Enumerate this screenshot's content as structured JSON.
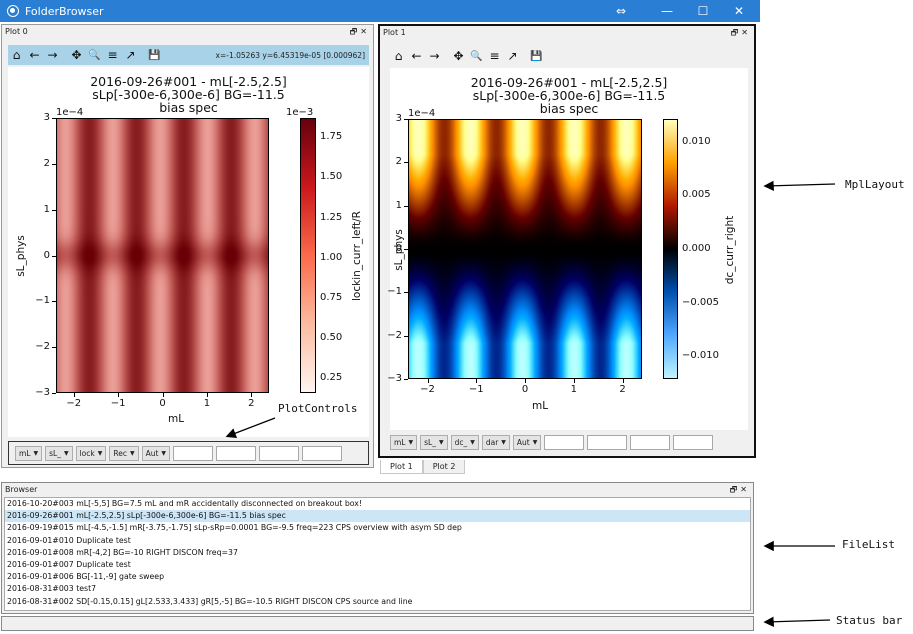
{
  "window": {
    "title": "FolderBrowser",
    "buttons": {
      "minimize": "—",
      "maximize": "☐",
      "close": "✕",
      "extra": "⇔"
    }
  },
  "plot0": {
    "dock_title": "Plot 0",
    "dock_controls": "🗗✕",
    "coords": "x=-1.05263     y=6.45319e-05  [0.000962]",
    "title_lines": [
      "2016-09-26#001 - mL[-2.5,2.5]",
      "sLp[-300e-6,300e-6] BG=-11.5",
      "bias spec"
    ],
    "y_offset": "1e−4",
    "cbar_offset": "1e−3",
    "xlabel": "mL",
    "ylabel": "sL_phys",
    "clabel": "lockin_curr_left/R",
    "yticks": [
      "3",
      "2",
      "1",
      "0",
      "−1",
      "−2",
      "−3"
    ],
    "xticks": [
      "−2",
      "−1",
      "0",
      "1",
      "2"
    ],
    "cticks": [
      "1.75",
      "1.50",
      "1.25",
      "1.00",
      "0.75",
      "0.50",
      "0.25"
    ],
    "controls": [
      "mL",
      "sL_",
      "lock",
      "Rec",
      "Aut"
    ]
  },
  "plot1": {
    "dock_title": "Plot 1",
    "dock_controls": "🗗✕",
    "title_lines": [
      "2016-09-26#001 - mL[-2.5,2.5]",
      "sLp[-300e-6,300e-6] BG=-11.5",
      "bias spec"
    ],
    "y_offset": "1e−4",
    "xlabel": "mL",
    "ylabel": "sL_phys",
    "clabel": "dc_curr_right",
    "yticks": [
      "3",
      "2",
      "1",
      "0",
      "−1",
      "−2",
      "−3"
    ],
    "xticks": [
      "−2",
      "−1",
      "0",
      "1",
      "2"
    ],
    "cticks": [
      "0.010",
      "0.005",
      "0.000",
      "−0.005",
      "−0.010"
    ],
    "controls": [
      "mL",
      "sL_",
      "dc_",
      "dar",
      "Aut"
    ]
  },
  "toolbar": {
    "icons": [
      "home-icon",
      "back-arrow-icon",
      "forward-arrow-icon",
      "pan-icon",
      "zoom-icon",
      "subplots-icon",
      "edit-axes-icon",
      "save-icon"
    ],
    "glyphs": [
      "⌂",
      "←",
      "→",
      "✥",
      "🔍",
      "≡",
      "↗",
      "💾"
    ]
  },
  "tabs": [
    "Plot 1",
    "Plot 2"
  ],
  "browser": {
    "dock_title": "Browser",
    "dock_controls": "🗗✕",
    "files": [
      "2016-10-20#003 mL[-5,5] BG=7.5 mL and mR accidentally disconnected on breakout box!",
      "2016-09-26#001 mL[-2.5,2.5] sLp[-300e-6,300e-6] BG=-11.5 bias spec",
      "2016-09-19#015 mL[-4.5,-1.5] mR[-3.75,-1.75] sLp-sRp=0.0001 BG=-9.5 freq=223 CPS overview with asym SD dep",
      "2016-09-01#010 Duplicate test",
      "2016-09-01#008 mR[-4,2] BG=-10 RIGHT DISCON freq=37",
      "2016-09-01#007 Duplicate test",
      "2016-09-01#006 BG[-11,-9] gate sweep",
      "2016-08-31#003 test7",
      "2016-08-31#002 SD[-0.15,0.15] gL[2.533,3.433] gR[5,-5] BG=-10.5 RIGHT DISCON CPS source and line"
    ],
    "selected_index": 1
  },
  "annotations": {
    "mpllayout": "MplLayout",
    "plotcontrols": "PlotControls",
    "filelist": "FileList",
    "statusbar": "Status bar"
  }
}
